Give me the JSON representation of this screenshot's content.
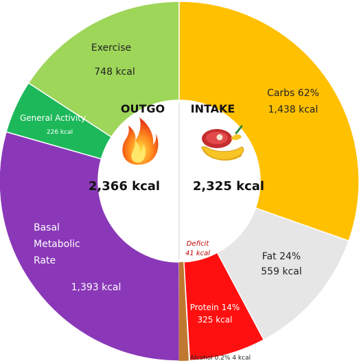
{
  "chart_data": {
    "type": "pie",
    "variant": "donut",
    "outgo": {
      "title": "OUTGO",
      "total_label": "2,366 kcal",
      "total": 2366,
      "icon": "flame-icon",
      "segments": [
        {
          "key": "exercise",
          "name": "Exercise",
          "kcal": 748,
          "value_label": "748 kcal",
          "color": "#9ed65a"
        },
        {
          "key": "general",
          "name": "General Activity",
          "kcal": 226,
          "value_label": "226 kcal",
          "color": "#1db85a"
        },
        {
          "key": "bmr",
          "name": "Basal Metabolic Rate",
          "name_lines": [
            "Basal",
            "Metabolic",
            "Rate"
          ],
          "kcal": 1393,
          "value_label": "1,393 kcal",
          "color": "#8a38b8"
        }
      ]
    },
    "intake": {
      "title": "INTAKE",
      "total_label": "2,325 kcal",
      "total": 2325,
      "icon": "food-icon",
      "segments": [
        {
          "key": "carbs",
          "name": "Carbs 62%",
          "kcal": 1438,
          "value_label": "1,438 kcal",
          "color": "#ffc000"
        },
        {
          "key": "fat",
          "name": "Fat 24%",
          "kcal": 559,
          "value_label": "559 kcal",
          "color": "#e6e6e6"
        },
        {
          "key": "protein",
          "name": "Protein 14%",
          "kcal": 325,
          "value_label": "325 kcal",
          "color": "#ff1010"
        },
        {
          "key": "alcohol",
          "name": "Alcohol 0.2% 4 kcal",
          "kcal": 4,
          "color": "#c8702a"
        }
      ],
      "deficit": {
        "label": "Deficit",
        "value_label": "41 kcal",
        "kcal": 41,
        "color": "#c07830"
      }
    }
  }
}
